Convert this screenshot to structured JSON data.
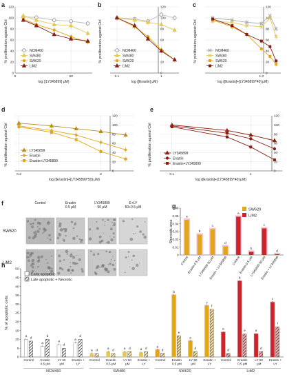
{
  "colors": {
    "ncm": "#c8c8c8",
    "sw480": "#e3c85a",
    "sw620": "#e0a818",
    "lim2": "#8a1e12",
    "lim2bar": "#c8262a",
    "pink": "#f3a6c8",
    "grid": "#d9d9d9"
  },
  "chart_data": [
    {
      "id": "a",
      "type": "line",
      "panel_label": "a",
      "ylabel": "% proliferation against Ctrl",
      "xlabel": "log ([LY345899] μM)",
      "x_axis": {
        "scale": "log",
        "ticks": [
          {
            "v": 5,
            "label": "5"
          },
          {
            "v": 50,
            "label": "50"
          }
        ],
        "range": [
          5,
          120
        ]
      },
      "y_axis": {
        "range": [
          0,
          120
        ],
        "ticks": [
          0,
          20,
          40,
          60,
          80,
          100,
          120
        ]
      },
      "legend": [
        "NCM460",
        "SW480",
        "SW620",
        "LiM2"
      ],
      "legend_position": "bottom-left",
      "x": [
        7,
        12,
        25,
        50,
        100
      ],
      "series": [
        {
          "name": "NCM460",
          "values": [
            102,
            101,
            96,
            94,
            90
          ]
        },
        {
          "name": "SW480",
          "values": [
            104,
            96,
            88,
            86,
            72
          ]
        },
        {
          "name": "SW620",
          "values": [
            98,
            88,
            78,
            66,
            56
          ]
        },
        {
          "name": "LiM2",
          "values": [
            96,
            86,
            70,
            62,
            58
          ]
        }
      ]
    },
    {
      "id": "b",
      "type": "line",
      "panel_label": "b",
      "ylabel": "% proliferation against Ctrl",
      "xlabel": "log ([Erastin] μM)",
      "x_axis": {
        "scale": "log",
        "ticks": [
          {
            "v": 0.1,
            "label": "0.1"
          },
          {
            "v": 1,
            "label": "1"
          }
        ],
        "range": [
          0.07,
          2.5
        ]
      },
      "y_axis": {
        "range": [
          0,
          120
        ],
        "ticks": [
          0,
          20,
          40,
          60,
          80,
          100,
          120
        ],
        "side": "right"
      },
      "legend": [
        "NCM460",
        "SW480",
        "SW620",
        "LiM2"
      ],
      "legend_position": "bottom-left",
      "x": [
        0.1,
        0.25,
        0.5,
        1,
        2
      ],
      "series": [
        {
          "name": "NCM460",
          "values": [
            100,
            98,
            94,
            106,
            100
          ]
        },
        {
          "name": "SW480",
          "values": [
            100,
            96,
            92,
            88,
            78
          ]
        },
        {
          "name": "SW620",
          "values": [
            100,
            84,
            66,
            42,
            24
          ]
        },
        {
          "name": "LiM2",
          "values": [
            100,
            86,
            62,
            40,
            24
          ]
        }
      ]
    },
    {
      "id": "c",
      "type": "line",
      "panel_label": "c",
      "ylabel": "% proliferation against Ctrl",
      "xlabel": "log ([Erastin]+[LY345899*40] μM)",
      "x_axis": {
        "scale": "log",
        "ticks": [
          {
            "v": 1,
            "label": "1.0"
          }
        ],
        "range": [
          0.07,
          2.5
        ]
      },
      "y_axis": {
        "range": [
          0,
          120
        ],
        "ticks": [
          0,
          20,
          40,
          60,
          80,
          100,
          120
        ],
        "side": "right"
      },
      "legend": [
        "NCM460",
        "SW480",
        "SW620",
        "LiM2"
      ],
      "legend_position": "bottom-left",
      "x": [
        0.1,
        0.25,
        0.5,
        1,
        1.5,
        2
      ],
      "series": [
        {
          "name": "NCM460",
          "values": [
            100,
            96,
            92,
            90,
            104,
            80
          ]
        },
        {
          "name": "SW480",
          "values": [
            94,
            92,
            86,
            84,
            100,
            66
          ]
        },
        {
          "name": "SW620",
          "values": [
            96,
            84,
            70,
            44,
            30,
            16
          ]
        },
        {
          "name": "LiM2",
          "values": [
            98,
            86,
            70,
            58,
            48,
            22
          ]
        }
      ]
    },
    {
      "id": "d",
      "type": "line",
      "panel_label": "d",
      "ylabel": "% proliferation against Ctrl",
      "xlabel": "log ([Erastin]+[LY345899*50] μM)",
      "x_axis": {
        "scale": "log",
        "ticks": [
          {
            "v": 0.2,
            "label": "0.2"
          },
          {
            "v": 2,
            "label": "2"
          }
        ],
        "range": [
          0.18,
          5
        ]
      },
      "y_axis": {
        "range": [
          0,
          120
        ],
        "ticks": [
          0,
          20,
          40,
          60,
          80,
          100,
          120
        ],
        "side": "right"
      },
      "legend": [
        "LY345899",
        "Erastin",
        "Erastin+LY345899"
      ],
      "legend_position": "bottom-left",
      "x": [
        0.2,
        0.5,
        1,
        2,
        4
      ],
      "series": [
        {
          "name": "LY345899",
          "values": [
            104,
            98,
            92,
            86,
            78
          ]
        },
        {
          "name": "Erastin",
          "values": [
            98,
            88,
            78,
            62,
            46
          ]
        },
        {
          "name": "Erastin+LY345899",
          "values": [
            96,
            84,
            68,
            42,
            26
          ]
        }
      ]
    },
    {
      "id": "e",
      "type": "line",
      "panel_label": "e",
      "ylabel": "% proliferation against Ctrl",
      "xlabel": "log ([Erastin]+[LY345899*40] μM)",
      "x_axis": {
        "scale": "log",
        "ticks": [
          {
            "v": 0.1,
            "label": "0.1"
          },
          {
            "v": 1,
            "label": "1"
          }
        ],
        "range": [
          0.07,
          2.5
        ]
      },
      "y_axis": {
        "range": [
          0,
          120
        ],
        "ticks": [
          0,
          20,
          40,
          60,
          80,
          100,
          120
        ],
        "side": "right"
      },
      "legend": [
        "LY345899",
        "Erastin",
        "Erastin+LY345899"
      ],
      "legend_position": "bottom-left",
      "x": [
        0.1,
        0.5,
        1,
        2
      ],
      "series": [
        {
          "name": "LY345899",
          "values": [
            100,
            88,
            78,
            66
          ]
        },
        {
          "name": "Erastin",
          "values": [
            98,
            82,
            70,
            48
          ]
        },
        {
          "name": "Erastin+LY345899",
          "values": [
            96,
            74,
            52,
            24
          ]
        }
      ]
    },
    {
      "id": "g",
      "type": "bar",
      "panel_label": "g",
      "ylabel": "Sheroids area",
      "y_axis": {
        "range": [
          0,
          0.06
        ],
        "ticks": [
          {
            "v": 0,
            "label": "0"
          },
          {
            "v": 0.01,
            "label": "0.01"
          },
          {
            "v": 0.02,
            "label": "0.02"
          },
          {
            "v": 0.03,
            "label": "0.03"
          },
          {
            "v": 0.04,
            "label": "0.04"
          },
          {
            "v": 0.05,
            "label": "0.05"
          },
          {
            "v": 0.06,
            "label": "0.06"
          }
        ]
      },
      "legend": [
        "SW620",
        "LiM2"
      ],
      "legend_position": "top-right",
      "categories": [
        "Control",
        "Erastin 0.5 μM",
        "LY345899 50 μM",
        "Erastin + LY345899",
        "Control",
        "Erastin 0.5 μM",
        "LY345899 50 μM",
        "Erastin + LY345899"
      ],
      "values": [
        0.045,
        0.026,
        0.033,
        0.011,
        0.049,
        0.004,
        0.034,
        0.001
      ],
      "groups": [
        "SW620",
        "SW620",
        "SW620",
        "SW620",
        "LiM2",
        "LiM2",
        "LiM2",
        "LiM2"
      ],
      "letters": [
        "a",
        "b",
        "c",
        "d",
        "a",
        "b",
        "c",
        "d"
      ]
    },
    {
      "id": "h",
      "type": "bar",
      "panel_label": "h",
      "ylabel": "% of apoptotic cells",
      "y_axis": {
        "range": [
          0,
          50
        ],
        "ticks": [
          0,
          5,
          10,
          15,
          20,
          25,
          30,
          35,
          40,
          45,
          50
        ]
      },
      "legend": [
        "Early apoptotic",
        "Late apoptotic + Necrotic"
      ],
      "legend_position": "top-left",
      "cell_lines": [
        "NCM460",
        "SW480",
        "SW620",
        "LiM2"
      ],
      "treatments": [
        "Control",
        "Erastin 0.5 μM",
        "LY 50 μM",
        "Erastin + LY"
      ],
      "series": [
        {
          "name": "Early apoptotic",
          "values": [
            10,
            6,
            7,
            8,
            2,
            3,
            3,
            2.5,
            4,
            35,
            9,
            29,
            14,
            43,
            13,
            31
          ]
        },
        {
          "name": "Late apoptotic + Necrotic",
          "values": [
            9,
            10,
            5,
            10,
            2,
            2,
            3,
            3,
            2,
            12,
            3,
            27,
            2,
            13,
            3,
            17
          ]
        }
      ],
      "letters_early": [
        "a",
        "a",
        "a",
        "a",
        "a",
        "a",
        "a",
        "a",
        "a",
        "b",
        "a",
        "c",
        "a",
        "b",
        "a",
        "c"
      ],
      "letters_late": [
        "d",
        "d",
        "d",
        "d",
        "d",
        "d",
        "d",
        "d",
        "d",
        "e",
        "d",
        "f",
        "d",
        "e",
        "d",
        "f"
      ]
    }
  ],
  "panel_f": {
    "label": "f",
    "columns": [
      "Control",
      "Erastin\n0.5 μM",
      "LY345899\n50 μM",
      "E+LY\n50+0.5 μM"
    ],
    "rows": [
      "SW620",
      "LiM2"
    ]
  }
}
